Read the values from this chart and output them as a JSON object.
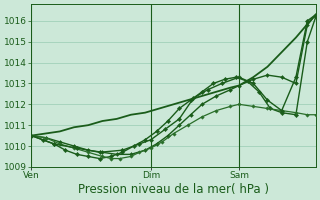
{
  "background_color": "#cce8d8",
  "plot_bg_color": "#cce8d8",
  "grid_color": "#99ccb4",
  "ylim": [
    1009.0,
    1016.8
  ],
  "yticks": [
    1009,
    1010,
    1011,
    1012,
    1013,
    1014,
    1015,
    1016
  ],
  "xlabel": "Pression niveau de la mer( hPa )",
  "xlabel_fontsize": 8.5,
  "tick_fontsize": 6.5,
  "xtick_labels": [
    "Ven",
    "Dim",
    "Sam"
  ],
  "xtick_positions": [
    0.0,
    0.42,
    0.73
  ],
  "line_color": "#1a5c1a",
  "vline_color": "#1a5c1a",
  "vline_positions": [
    0.0,
    0.42,
    0.73
  ],
  "series": [
    {
      "x": [
        0.0,
        0.05,
        0.1,
        0.15,
        0.2,
        0.25,
        0.3,
        0.35,
        0.4,
        0.45,
        0.5,
        0.55,
        0.6,
        0.65,
        0.7,
        0.73,
        0.78,
        0.83,
        0.88,
        0.93,
        0.98,
        1.0
      ],
      "y": [
        1010.5,
        1010.6,
        1010.7,
        1010.9,
        1011.0,
        1011.2,
        1011.3,
        1011.5,
        1011.6,
        1011.8,
        1012.0,
        1012.2,
        1012.4,
        1012.6,
        1012.8,
        1012.9,
        1013.3,
        1013.8,
        1014.5,
        1015.2,
        1016.0,
        1016.3
      ],
      "color": "#1a5c1a",
      "lw": 1.3,
      "marker": null,
      "ms": 0
    },
    {
      "x": [
        0.0,
        0.04,
        0.08,
        0.12,
        0.16,
        0.2,
        0.24,
        0.28,
        0.32,
        0.36,
        0.4,
        0.44,
        0.48,
        0.52,
        0.56,
        0.6,
        0.64,
        0.68,
        0.72,
        0.76,
        0.8,
        0.84,
        0.88,
        0.93,
        0.97,
        1.0
      ],
      "y": [
        1010.5,
        1010.3,
        1010.1,
        1009.8,
        1009.6,
        1009.5,
        1009.4,
        1009.5,
        1009.7,
        1010.0,
        1010.3,
        1010.7,
        1011.2,
        1011.8,
        1012.2,
        1012.6,
        1013.0,
        1013.2,
        1013.3,
        1013.1,
        1012.6,
        1011.8,
        1011.6,
        1011.5,
        1015.0,
        1016.2
      ],
      "color": "#1a5c1a",
      "lw": 1.0,
      "marker": "D",
      "ms": 2.2
    },
    {
      "x": [
        0.0,
        0.05,
        0.1,
        0.15,
        0.2,
        0.25,
        0.3,
        0.35,
        0.4,
        0.44,
        0.48,
        0.52,
        0.56,
        0.6,
        0.65,
        0.7,
        0.73,
        0.78,
        0.83,
        0.88,
        0.93,
        0.97,
        1.0
      ],
      "y": [
        1010.5,
        1010.4,
        1010.2,
        1010.0,
        1009.8,
        1009.7,
        1009.6,
        1009.6,
        1009.8,
        1010.1,
        1010.5,
        1011.0,
        1011.5,
        1012.0,
        1012.4,
        1012.7,
        1012.9,
        1013.2,
        1013.4,
        1013.3,
        1013.0,
        1015.8,
        1016.3
      ],
      "color": "#1a5c1a",
      "lw": 1.0,
      "marker": "D",
      "ms": 2.0
    },
    {
      "x": [
        0.0,
        0.05,
        0.1,
        0.15,
        0.2,
        0.25,
        0.28,
        0.31,
        0.35,
        0.38,
        0.42,
        0.46,
        0.5,
        0.55,
        0.6,
        0.65,
        0.7,
        0.73,
        0.78,
        0.83,
        0.88,
        0.93,
        0.97,
        1.0
      ],
      "y": [
        1010.5,
        1010.4,
        1010.1,
        1009.9,
        1009.7,
        1009.5,
        1009.4,
        1009.4,
        1009.5,
        1009.7,
        1009.9,
        1010.2,
        1010.6,
        1011.0,
        1011.4,
        1011.7,
        1011.9,
        1012.0,
        1011.9,
        1011.8,
        1011.7,
        1011.6,
        1011.5,
        1011.5
      ],
      "color": "#2a6e2a",
      "lw": 0.9,
      "marker": "D",
      "ms": 1.8
    },
    {
      "x": [
        0.0,
        0.08,
        0.16,
        0.24,
        0.32,
        0.38,
        0.42,
        0.47,
        0.52,
        0.57,
        0.62,
        0.67,
        0.73,
        0.78,
        0.83,
        0.88,
        0.93,
        0.97,
        1.0
      ],
      "y": [
        1010.5,
        1010.1,
        1009.9,
        1009.7,
        1009.8,
        1010.1,
        1010.3,
        1010.8,
        1011.3,
        1012.3,
        1012.7,
        1013.0,
        1013.3,
        1013.0,
        1012.2,
        1011.7,
        1013.3,
        1016.0,
        1016.3
      ],
      "color": "#1a5c1a",
      "lw": 1.0,
      "marker": "D",
      "ms": 2.2
    }
  ]
}
